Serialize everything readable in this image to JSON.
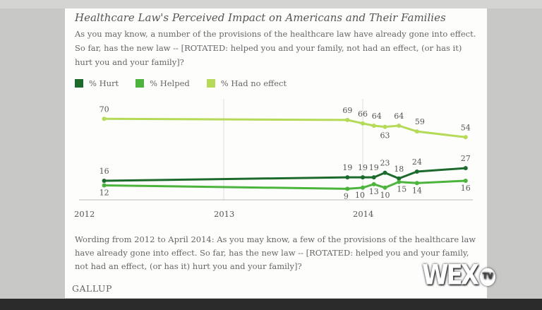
{
  "chart_data": {
    "type": "line",
    "title": "Healthcare Law's Perceived Impact on Americans and Their Families",
    "subtitle": "As you may know, a number of the provisions of the healthcare law have already gone into effect. So far, has the new law -- [ROTATED: helped you and your family, not had an effect, (or has it) hurt you and your family]?",
    "x": [
      2012.14,
      2013.89,
      2014.0,
      2014.08,
      2014.16,
      2014.26,
      2014.39,
      2014.74
    ],
    "x_ticks": [
      "2012",
      "2013",
      "2014"
    ],
    "xlim": [
      2011.97,
      2014.78
    ],
    "ylim": [
      0,
      75
    ],
    "grid": "vertical year lines",
    "legend": "top-left",
    "series": [
      {
        "name": "% Hurt",
        "color": "#1d6b2c",
        "values": [
          16,
          19,
          19,
          19,
          23,
          18,
          24,
          27
        ]
      },
      {
        "name": "% Helped",
        "color": "#4cb43c",
        "values": [
          12,
          9,
          10,
          13,
          10,
          15,
          14,
          16
        ]
      },
      {
        "name": "% Had no effect",
        "color": "#b4da58",
        "values": [
          70,
          69,
          66,
          64,
          63,
          64,
          59,
          54
        ]
      }
    ],
    "footnote": "Wording from 2012 to April 2014: As you may know, a few of the provisions of the healthcare law have already gone into effect. So far, has the new law -- [ROTATED: helped you and your family, not had an effect, (or has it) hurt you and your family]?",
    "source": "GALLUP"
  },
  "overlay": {
    "logo": "WEX",
    "logo_badge": "TV"
  }
}
